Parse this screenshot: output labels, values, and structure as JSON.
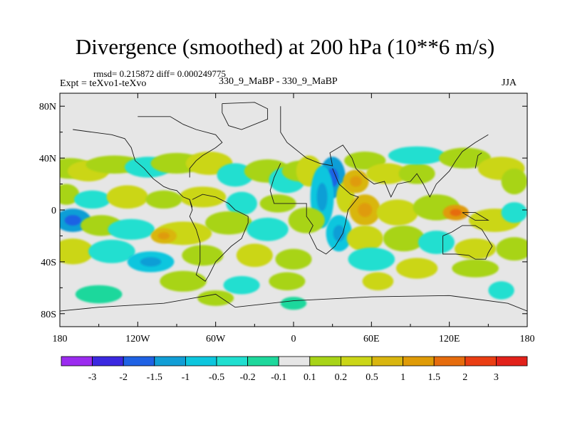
{
  "header": {
    "title": "Divergence (smoothed) at 200 hPa (10**6 m/s)",
    "stats": "rmsd= 0.215872 diff= 0.000249775",
    "expt": "Expt = teXvo1-teXvo",
    "case": "330_9_MaBP - 330_9_MaBP",
    "season": "JJA"
  },
  "colors": {
    "background": "#e6e6e6",
    "frame": "#000000",
    "coast": "#1a1a1a"
  },
  "chart_data": {
    "type": "heatmap",
    "title": "Divergence (smoothed) at 200 hPa (10**6 m/s)",
    "variable": "Divergence (smoothed)",
    "level": "200 hPa",
    "units": "10**6 m/s",
    "x_range": [
      -180,
      180
    ],
    "y_range": [
      -90,
      90
    ],
    "x_ticks": [
      {
        "value": -180,
        "label": "180"
      },
      {
        "value": -120,
        "label": "120W"
      },
      {
        "value": -60,
        "label": "60W"
      },
      {
        "value": 0,
        "label": "0"
      },
      {
        "value": 60,
        "label": "60E"
      },
      {
        "value": 120,
        "label": "120E"
      },
      {
        "value": 180,
        "label": "180"
      }
    ],
    "y_ticks": [
      {
        "value": 80,
        "label": "80N"
      },
      {
        "value": 40,
        "label": "40N"
      },
      {
        "value": 0,
        "label": "0"
      },
      {
        "value": -40,
        "label": "40S"
      },
      {
        "value": -80,
        "label": "80S"
      }
    ],
    "colorbar": {
      "colors": [
        "#9b2bef",
        "#3b28e0",
        "#1f62e4",
        "#119ed6",
        "#0dc6de",
        "#20dfd0",
        "#1ed89c",
        "#e6e6e6",
        "#a8d418",
        "#cbd617",
        "#d9b60f",
        "#df9b07",
        "#e66c0d",
        "#ea3e13",
        "#e2211a"
      ],
      "labels": [
        "-3",
        "-2",
        "-1.5",
        "-1",
        "-0.5",
        "-0.2",
        "-0.1",
        "0.1",
        "0.2",
        "0.5",
        "1",
        "1.5",
        "2",
        "3"
      ]
    },
    "bands": [
      {
        "lat": 32,
        "lon": -172,
        "w": 18,
        "h": 8,
        "c": 8
      },
      {
        "lat": 30,
        "lon": -158,
        "w": 16,
        "h": 8,
        "c": 9
      },
      {
        "lat": 35,
        "lon": -138,
        "w": 22,
        "h": 7,
        "c": 8
      },
      {
        "lat": 33,
        "lon": -112,
        "w": 18,
        "h": 8,
        "c": 5
      },
      {
        "lat": 36,
        "lon": -90,
        "w": 20,
        "h": 8,
        "c": 8
      },
      {
        "lat": 36,
        "lon": -65,
        "w": 18,
        "h": 9,
        "c": 9
      },
      {
        "lat": 27,
        "lon": -45,
        "w": 14,
        "h": 9,
        "c": 5
      },
      {
        "lat": 30,
        "lon": -20,
        "w": 18,
        "h": 9,
        "c": 8
      },
      {
        "lat": 23,
        "lon": -5,
        "w": 14,
        "h": 10,
        "c": 5
      },
      {
        "lat": 30,
        "lon": 5,
        "w": 14,
        "h": 8,
        "c": 8
      },
      {
        "lat": 30,
        "lon": 12,
        "w": 10,
        "h": 12,
        "c": 9
      },
      {
        "lat": 25,
        "lon": 30,
        "w": 10,
        "h": 16,
        "c": 3
      },
      {
        "lat": 10,
        "lon": 22,
        "w": 9,
        "h": 24,
        "c": 4
      },
      {
        "lat": 10,
        "lon": 40,
        "w": 7,
        "h": 12,
        "c": 9
      },
      {
        "lat": 22,
        "lon": 48,
        "w": 10,
        "h": 9,
        "c": 10
      },
      {
        "lat": 38,
        "lon": 55,
        "w": 16,
        "h": 7,
        "c": 8
      },
      {
        "lat": 28,
        "lon": 72,
        "w": 16,
        "h": 8,
        "c": 9
      },
      {
        "lat": 28,
        "lon": 95,
        "w": 14,
        "h": 8,
        "c": 8
      },
      {
        "lat": 42,
        "lon": 95,
        "w": 22,
        "h": 7,
        "c": 5
      },
      {
        "lat": 40,
        "lon": 132,
        "w": 20,
        "h": 8,
        "c": 8
      },
      {
        "lat": 32,
        "lon": 160,
        "w": 18,
        "h": 9,
        "c": 9
      },
      {
        "lat": 22,
        "lon": 170,
        "w": 10,
        "h": 10,
        "c": 8
      },
      {
        "lat": 12,
        "lon": -175,
        "w": 10,
        "h": 8,
        "c": 8
      },
      {
        "lat": 8,
        "lon": -155,
        "w": 14,
        "h": 7,
        "c": 5
      },
      {
        "lat": 10,
        "lon": -128,
        "w": 16,
        "h": 9,
        "c": 9
      },
      {
        "lat": 10,
        "lon": -70,
        "w": 18,
        "h": 8,
        "c": 9
      },
      {
        "lat": 8,
        "lon": -100,
        "w": 14,
        "h": 7,
        "c": 8
      },
      {
        "lat": 5,
        "lon": -40,
        "w": 12,
        "h": 9,
        "c": 5
      },
      {
        "lat": 5,
        "lon": -12,
        "w": 14,
        "h": 7,
        "c": 8
      },
      {
        "lat": 0,
        "lon": 55,
        "w": 12,
        "h": 12,
        "c": 10
      },
      {
        "lat": -2,
        "lon": 80,
        "w": 16,
        "h": 10,
        "c": 9
      },
      {
        "lat": 2,
        "lon": 110,
        "w": 18,
        "h": 10,
        "c": 8
      },
      {
        "lat": -2,
        "lon": 125,
        "w": 10,
        "h": 6,
        "c": 11
      },
      {
        "lat": -8,
        "lon": 155,
        "w": 20,
        "h": 9,
        "c": 9
      },
      {
        "lat": -2,
        "lon": 170,
        "w": 10,
        "h": 8,
        "c": 5
      },
      {
        "lat": -8,
        "lon": -170,
        "w": 14,
        "h": 9,
        "c": 3
      },
      {
        "lat": -12,
        "lon": -148,
        "w": 16,
        "h": 8,
        "c": 8
      },
      {
        "lat": -15,
        "lon": -125,
        "w": 18,
        "h": 8,
        "c": 5
      },
      {
        "lat": -18,
        "lon": -85,
        "w": 22,
        "h": 9,
        "c": 9
      },
      {
        "lat": -20,
        "lon": -100,
        "w": 10,
        "h": 6,
        "c": 10
      },
      {
        "lat": -10,
        "lon": -50,
        "w": 18,
        "h": 9,
        "c": 8
      },
      {
        "lat": -15,
        "lon": -20,
        "w": 16,
        "h": 9,
        "c": 5
      },
      {
        "lat": -8,
        "lon": 10,
        "w": 14,
        "h": 10,
        "c": 8
      },
      {
        "lat": -18,
        "lon": 35,
        "w": 10,
        "h": 14,
        "c": 4
      },
      {
        "lat": -22,
        "lon": 55,
        "w": 14,
        "h": 10,
        "c": 9
      },
      {
        "lat": -22,
        "lon": 85,
        "w": 16,
        "h": 10,
        "c": 8
      },
      {
        "lat": -25,
        "lon": 110,
        "w": 14,
        "h": 9,
        "c": 5
      },
      {
        "lat": -30,
        "lon": 140,
        "w": 16,
        "h": 8,
        "c": 9
      },
      {
        "lat": -30,
        "lon": 170,
        "w": 14,
        "h": 9,
        "c": 8
      },
      {
        "lat": -32,
        "lon": -170,
        "w": 16,
        "h": 10,
        "c": 9
      },
      {
        "lat": -32,
        "lon": -140,
        "w": 18,
        "h": 9,
        "c": 5
      },
      {
        "lat": -40,
        "lon": -110,
        "w": 18,
        "h": 8,
        "c": 4
      },
      {
        "lat": -35,
        "lon": -70,
        "w": 16,
        "h": 8,
        "c": 8
      },
      {
        "lat": -35,
        "lon": -30,
        "w": 14,
        "h": 9,
        "c": 9
      },
      {
        "lat": -38,
        "lon": 0,
        "w": 14,
        "h": 8,
        "c": 8
      },
      {
        "lat": -38,
        "lon": 60,
        "w": 18,
        "h": 9,
        "c": 5
      },
      {
        "lat": -45,
        "lon": 95,
        "w": 16,
        "h": 8,
        "c": 9
      },
      {
        "lat": -45,
        "lon": 140,
        "w": 18,
        "h": 7,
        "c": 8
      },
      {
        "lat": -55,
        "lon": -85,
        "w": 18,
        "h": 8,
        "c": 8
      },
      {
        "lat": -58,
        "lon": -40,
        "w": 14,
        "h": 7,
        "c": 5
      },
      {
        "lat": -55,
        "lon": -5,
        "w": 14,
        "h": 7,
        "c": 8
      },
      {
        "lat": -55,
        "lon": 65,
        "w": 12,
        "h": 7,
        "c": 9
      },
      {
        "lat": -65,
        "lon": -150,
        "w": 18,
        "h": 7,
        "c": 6
      },
      {
        "lat": -68,
        "lon": -60,
        "w": 14,
        "h": 6,
        "c": 8
      },
      {
        "lat": -72,
        "lon": 0,
        "w": 10,
        "h": 5,
        "c": 6
      },
      {
        "lat": -62,
        "lon": 160,
        "w": 10,
        "h": 7,
        "c": 5
      }
    ],
    "coast_lines": [
      [
        [
          -10,
          80
        ],
        [
          -10,
          60
        ],
        [
          -5,
          52
        ],
        [
          0,
          48
        ],
        [
          5,
          44
        ],
        [
          10,
          40
        ],
        [
          20,
          36
        ],
        [
          30,
          34
        ],
        [
          28,
          44
        ],
        [
          38,
          50
        ],
        [
          45,
          40
        ],
        [
          48,
          32
        ],
        [
          55,
          25
        ],
        [
          62,
          20
        ],
        [
          70,
          22
        ],
        [
          75,
          10
        ],
        [
          80,
          20
        ],
        [
          90,
          22
        ],
        [
          95,
          28
        ],
        [
          100,
          20
        ],
        [
          105,
          10
        ],
        [
          110,
          20
        ],
        [
          120,
          30
        ],
        [
          125,
          38
        ],
        [
          130,
          45
        ],
        [
          140,
          52
        ],
        [
          150,
          58
        ]
      ],
      [
        [
          -10,
          36
        ],
        [
          -15,
          25
        ],
        [
          -18,
          15
        ],
        [
          -15,
          5
        ],
        [
          -5,
          5
        ],
        [
          10,
          5
        ],
        [
          10,
          -5
        ],
        [
          15,
          -12
        ],
        [
          12,
          -18
        ],
        [
          18,
          -30
        ],
        [
          25,
          -34
        ],
        [
          32,
          -28
        ],
        [
          38,
          -18
        ],
        [
          40,
          -10
        ],
        [
          42,
          0
        ],
        [
          50,
          10
        ],
        [
          44,
          12
        ],
        [
          35,
          20
        ],
        [
          30,
          32
        ]
      ],
      [
        [
          -170,
          62
        ],
        [
          -155,
          60
        ],
        [
          -140,
          58
        ],
        [
          -130,
          55
        ],
        [
          -125,
          48
        ],
        [
          -122,
          38
        ],
        [
          -115,
          32
        ],
        [
          -108,
          24
        ],
        [
          -100,
          18
        ],
        [
          -95,
          16
        ],
        [
          -90,
          15
        ],
        [
          -85,
          10
        ],
        [
          -80,
          8
        ],
        [
          -78,
          2
        ]
      ],
      [
        [
          -80,
          25
        ],
        [
          -80,
          32
        ],
        [
          -75,
          38
        ],
        [
          -70,
          42
        ],
        [
          -65,
          45
        ],
        [
          -60,
          48
        ],
        [
          -55,
          52
        ],
        [
          -60,
          58
        ],
        [
          -75,
          62
        ],
        [
          -85,
          66
        ],
        [
          -95,
          72
        ],
        [
          -120,
          72
        ]
      ],
      [
        [
          -80,
          8
        ],
        [
          -78,
          0
        ],
        [
          -80,
          -5
        ],
        [
          -75,
          -15
        ],
        [
          -72,
          -25
        ],
        [
          -72,
          -40
        ],
        [
          -75,
          -50
        ],
        [
          -68,
          -55
        ],
        [
          -65,
          -50
        ],
        [
          -60,
          -40
        ],
        [
          -55,
          -35
        ],
        [
          -48,
          -28
        ],
        [
          -40,
          -22
        ],
        [
          -35,
          -10
        ],
        [
          -35,
          -5
        ],
        [
          -45,
          0
        ],
        [
          -50,
          5
        ],
        [
          -60,
          10
        ],
        [
          -70,
          12
        ],
        [
          -78,
          8
        ]
      ],
      [
        [
          115,
          -20
        ],
        [
          115,
          -34
        ],
        [
          125,
          -34
        ],
        [
          135,
          -35
        ],
        [
          140,
          -38
        ],
        [
          148,
          -38
        ],
        [
          150,
          -33
        ],
        [
          153,
          -28
        ],
        [
          145,
          -15
        ],
        [
          140,
          -12
        ],
        [
          135,
          -12
        ],
        [
          130,
          -12
        ],
        [
          122,
          -17
        ],
        [
          115,
          -20
        ]
      ],
      [
        [
          -180,
          -78
        ],
        [
          -150,
          -75
        ],
        [
          -100,
          -72
        ],
        [
          -60,
          -65
        ],
        [
          -45,
          -75
        ],
        [
          0,
          -70
        ],
        [
          60,
          -67
        ],
        [
          120,
          -66
        ],
        [
          165,
          -72
        ],
        [
          180,
          -78
        ]
      ],
      [
        [
          -55,
          82
        ],
        [
          -30,
          83
        ],
        [
          -20,
          78
        ],
        [
          -20,
          70
        ],
        [
          -40,
          62
        ],
        [
          -50,
          65
        ],
        [
          -55,
          75
        ],
        [
          -55,
          82
        ]
      ],
      [
        [
          130,
          -2
        ],
        [
          140,
          -2
        ],
        [
          150,
          -8
        ],
        [
          140,
          -8
        ],
        [
          130,
          -2
        ]
      ],
      [
        [
          140,
          32
        ],
        [
          142,
          42
        ],
        [
          145,
          44
        ]
      ]
    ]
  }
}
